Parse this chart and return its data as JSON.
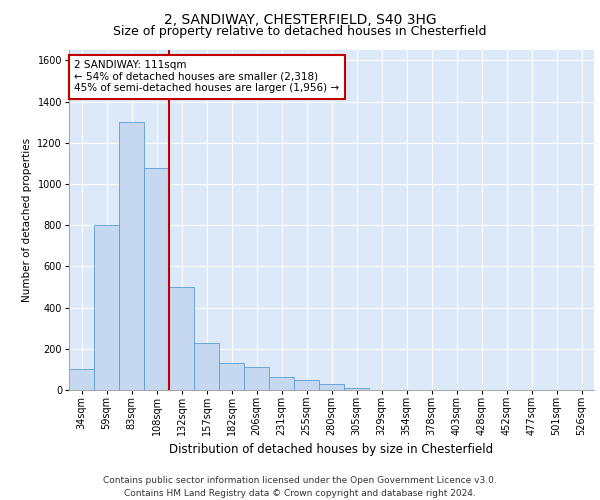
{
  "title1": "2, SANDIWAY, CHESTERFIELD, S40 3HG",
  "title2": "Size of property relative to detached houses in Chesterfield",
  "xlabel": "Distribution of detached houses by size in Chesterfield",
  "ylabel": "Number of detached properties",
  "categories": [
    "34sqm",
    "59sqm",
    "83sqm",
    "108sqm",
    "132sqm",
    "157sqm",
    "182sqm",
    "206sqm",
    "231sqm",
    "255sqm",
    "280sqm",
    "305sqm",
    "329sqm",
    "354sqm",
    "378sqm",
    "403sqm",
    "428sqm",
    "452sqm",
    "477sqm",
    "501sqm",
    "526sqm"
  ],
  "values": [
    100,
    800,
    1300,
    1075,
    500,
    230,
    130,
    110,
    65,
    50,
    30,
    10,
    0,
    0,
    0,
    0,
    0,
    0,
    0,
    0,
    0
  ],
  "bar_color": "#c5d8ef",
  "bar_edge_color": "#5b9bd5",
  "vline_x": 3.5,
  "vline_color": "#c00000",
  "annotation_line1": "2 SANDIWAY: 111sqm",
  "annotation_line2": "← 54% of detached houses are smaller (2,318)",
  "annotation_line3": "45% of semi-detached houses are larger (1,956) →",
  "annotation_box_color": "#ffffff",
  "annotation_box_edge": "#c00000",
  "ylim": [
    0,
    1650
  ],
  "yticks": [
    0,
    200,
    400,
    600,
    800,
    1000,
    1200,
    1400,
    1600
  ],
  "background_color": "#dce9f8",
  "grid_color": "#ffffff",
  "footer1": "Contains HM Land Registry data © Crown copyright and database right 2024.",
  "footer2": "Contains public sector information licensed under the Open Government Licence v3.0.",
  "title1_fontsize": 10,
  "title2_fontsize": 9,
  "xlabel_fontsize": 8.5,
  "ylabel_fontsize": 7.5,
  "tick_fontsize": 7,
  "annotation_fontsize": 7.5,
  "footer_fontsize": 6.5
}
